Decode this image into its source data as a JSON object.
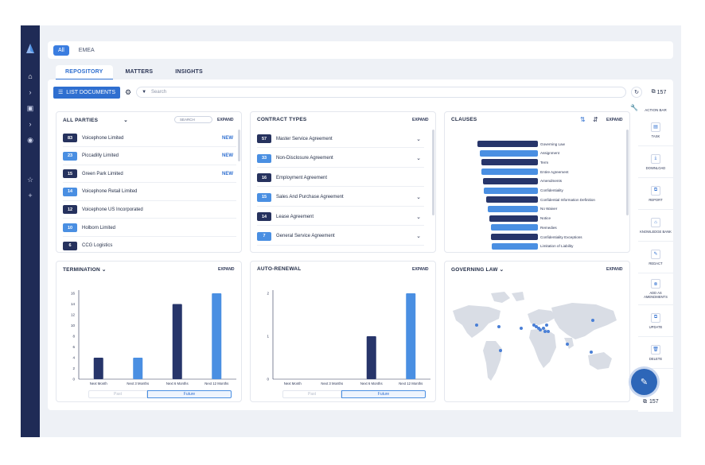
{
  "region_tabs": [
    "All",
    "EMEA"
  ],
  "nav_tabs": [
    "REPOSITORY",
    "MATTERS",
    "INSIGHTS"
  ],
  "toolbar": {
    "list_label": "LIST DOCUMENTS",
    "search_placeholder": "Search",
    "count": "157"
  },
  "expand_label": "EXPAND",
  "parties": {
    "title": "ALL PARTIES",
    "search_label": "SEARCH",
    "items": [
      {
        "count": "83",
        "name": "Voicephone Limited",
        "tag": "NEW",
        "color": "#26325e"
      },
      {
        "count": "23",
        "name": "Piccadilly Limited",
        "tag": "NEW",
        "color": "#4a8fe2"
      },
      {
        "count": "15",
        "name": "Green Park Limited",
        "tag": "NEW",
        "color": "#26325e"
      },
      {
        "count": "14",
        "name": "Voicephone Retail Limited",
        "tag": "",
        "color": "#4a8fe2"
      },
      {
        "count": "12",
        "name": "Voicephone US Incorporated",
        "tag": "",
        "color": "#26325e"
      },
      {
        "count": "10",
        "name": "Holborn Limited",
        "tag": "",
        "color": "#4a8fe2"
      },
      {
        "count": "6",
        "name": "CCG Logistics",
        "tag": "",
        "color": "#26325e"
      }
    ]
  },
  "contract_types": {
    "title": "CONTRACT TYPES",
    "items": [
      {
        "count": "57",
        "name": "Master Service Agreement",
        "color": "#26325e",
        "chevron": true
      },
      {
        "count": "33",
        "name": "Non-Disclosure Agreement",
        "color": "#4a8fe2",
        "chevron": true
      },
      {
        "count": "16",
        "name": "Employment Agreement",
        "color": "#26325e",
        "chevron": false
      },
      {
        "count": "15",
        "name": "Sales And Purchase Agreement",
        "color": "#4a8fe2",
        "chevron": true
      },
      {
        "count": "14",
        "name": "Lease Agreement",
        "color": "#26325e",
        "chevron": true
      },
      {
        "count": "7",
        "name": "General Service Agreement",
        "color": "#4a8fe2",
        "chevron": true
      }
    ]
  },
  "clauses": {
    "title": "CLAUSES",
    "items": [
      {
        "name": "Governing Law",
        "value": 100
      },
      {
        "name": "Assignment",
        "value": 96
      },
      {
        "name": "Term",
        "value": 94
      },
      {
        "name": "Entire Agreement",
        "value": 93
      },
      {
        "name": "Amendments",
        "value": 91
      },
      {
        "name": "Confidentiality",
        "value": 89
      },
      {
        "name": "Confidential Information Definition",
        "value": 86
      },
      {
        "name": "No Waiver",
        "value": 83
      },
      {
        "name": "Notice",
        "value": 80
      },
      {
        "name": "Remedies",
        "value": 78
      },
      {
        "name": "Confidentiality Exceptions",
        "value": 77
      },
      {
        "name": "Limitation of Liability",
        "value": 76
      }
    ]
  },
  "termination": {
    "title": "TERMINATION",
    "toggle": [
      "Past",
      "Future"
    ],
    "chart_data": {
      "type": "bar",
      "categories": [
        "Next Month",
        "Next 3 Months",
        "Next 6 Months",
        "Next 12 Months"
      ],
      "values": [
        4,
        4,
        14,
        16
      ],
      "ylim": [
        0,
        16
      ],
      "yticks": [
        0,
        2,
        4,
        6,
        8,
        10,
        12,
        14,
        16
      ],
      "colors": [
        "#27356a",
        "#4a8fe2",
        "#27356a",
        "#4a8fe2"
      ]
    }
  },
  "auto_renewal": {
    "title": "AUTO-RENEWAL",
    "toggle": [
      "Past",
      "Future"
    ],
    "chart_data": {
      "type": "bar",
      "categories": [
        "Next Month",
        "Next 3 Months",
        "Next 6 Months",
        "Next 12 Months"
      ],
      "values": [
        0,
        0,
        1,
        2
      ],
      "ylim": [
        0,
        2
      ],
      "yticks": [
        0,
        1,
        2
      ],
      "colors": [
        "#27356a",
        "#4a8fe2",
        "#27356a",
        "#4a8fe2"
      ]
    }
  },
  "governing_law": {
    "title": "GOVERNING LAW"
  },
  "action_bar": {
    "title": "ACTION BAR",
    "items": [
      "TASK",
      "DOWNLOAD",
      "REPORT",
      "KNOWLEDGE BANK",
      "REDACT",
      "ADD AS AMENDMENTS",
      "UPDATE",
      "DELETE"
    ],
    "count": "157"
  }
}
